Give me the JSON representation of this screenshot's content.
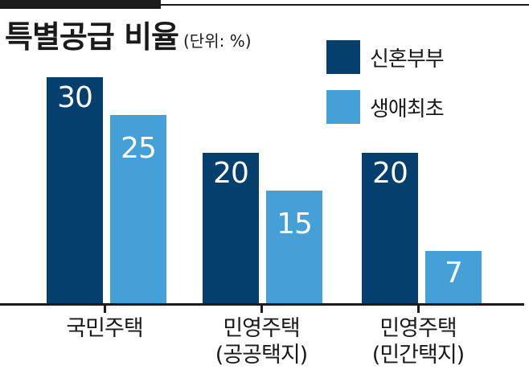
{
  "header": {
    "title": "특별공급 비율",
    "unit": "(단위: %)"
  },
  "colors": {
    "newlywed": "#043f6e",
    "first_time": "#44a0d6",
    "ink": "#1b1b1b"
  },
  "legend": [
    {
      "label": "신혼부부",
      "color": "#043f6e"
    },
    {
      "label": "생애최초",
      "color": "#44a0d6"
    }
  ],
  "chart_data": {
    "type": "bar",
    "title": "특별공급 비율",
    "subtitle": "(단위: %)",
    "xlabel": "",
    "ylabel": "",
    "categories": [
      "국민주택",
      "민영주택 (공공택지)",
      "민영주택 (민간택지)"
    ],
    "category_lines": [
      [
        "국민주택"
      ],
      [
        "민영주택",
        "(공공택지)"
      ],
      [
        "민영주택",
        "(민간택지)"
      ]
    ],
    "series": [
      {
        "name": "신혼부부",
        "values": [
          30,
          20,
          20
        ],
        "color": "#043f6e"
      },
      {
        "name": "생애최초",
        "values": [
          25,
          15,
          7
        ],
        "color": "#44a0d6"
      }
    ],
    "ylim": [
      0,
      30
    ],
    "grid": false,
    "legend_position": "top-right",
    "data_labels": true
  }
}
